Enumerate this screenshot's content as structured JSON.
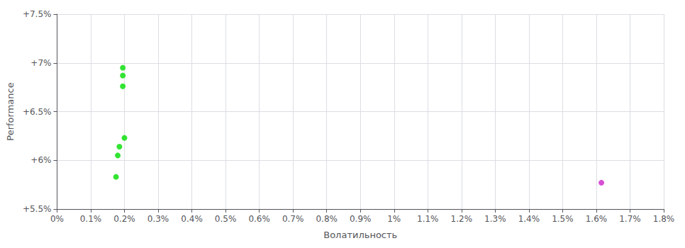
{
  "chart_data": {
    "type": "scatter",
    "xlabel": "Волатильность",
    "ylabel": "Performance",
    "xlim": [
      0.0,
      1.8
    ],
    "ylim": [
      5.5,
      7.5
    ],
    "xticks": [
      {
        "value": 0.0,
        "label": "0%"
      },
      {
        "value": 0.1,
        "label": "0.1%"
      },
      {
        "value": 0.2,
        "label": "0.2%"
      },
      {
        "value": 0.3,
        "label": "0.3%"
      },
      {
        "value": 0.4,
        "label": "0.4%"
      },
      {
        "value": 0.5,
        "label": "0.5%"
      },
      {
        "value": 0.6,
        "label": "0.6%"
      },
      {
        "value": 0.7,
        "label": "0.7%"
      },
      {
        "value": 0.8,
        "label": "0.8%"
      },
      {
        "value": 0.9,
        "label": "0.9%"
      },
      {
        "value": 1.0,
        "label": "1%"
      },
      {
        "value": 1.1,
        "label": "1.1%"
      },
      {
        "value": 1.2,
        "label": "1.2%"
      },
      {
        "value": 1.3,
        "label": "1.3%"
      },
      {
        "value": 1.4,
        "label": "1.4%"
      },
      {
        "value": 1.5,
        "label": "1.5%"
      },
      {
        "value": 1.6,
        "label": "1.6%"
      },
      {
        "value": 1.7,
        "label": "1.7%"
      },
      {
        "value": 1.8,
        "label": "1.8%"
      }
    ],
    "yticks": [
      {
        "value": 5.5,
        "label": "+5.5%"
      },
      {
        "value": 6.0,
        "label": "+6%"
      },
      {
        "value": 6.5,
        "label": "+6.5%"
      },
      {
        "value": 7.0,
        "label": "+7%"
      },
      {
        "value": 7.5,
        "label": "+7.5%"
      }
    ],
    "grid": true,
    "marker": "circle",
    "series": [
      {
        "color": "#00dd00",
        "x": [
          0.195,
          0.195,
          0.195,
          0.2,
          0.185,
          0.18,
          0.175
        ],
        "y": [
          6.95,
          6.87,
          6.76,
          6.23,
          6.14,
          6.05,
          5.83
        ]
      },
      {
        "color": "#cc22cc",
        "x": [
          1.615
        ],
        "y": [
          5.77
        ]
      }
    ]
  }
}
